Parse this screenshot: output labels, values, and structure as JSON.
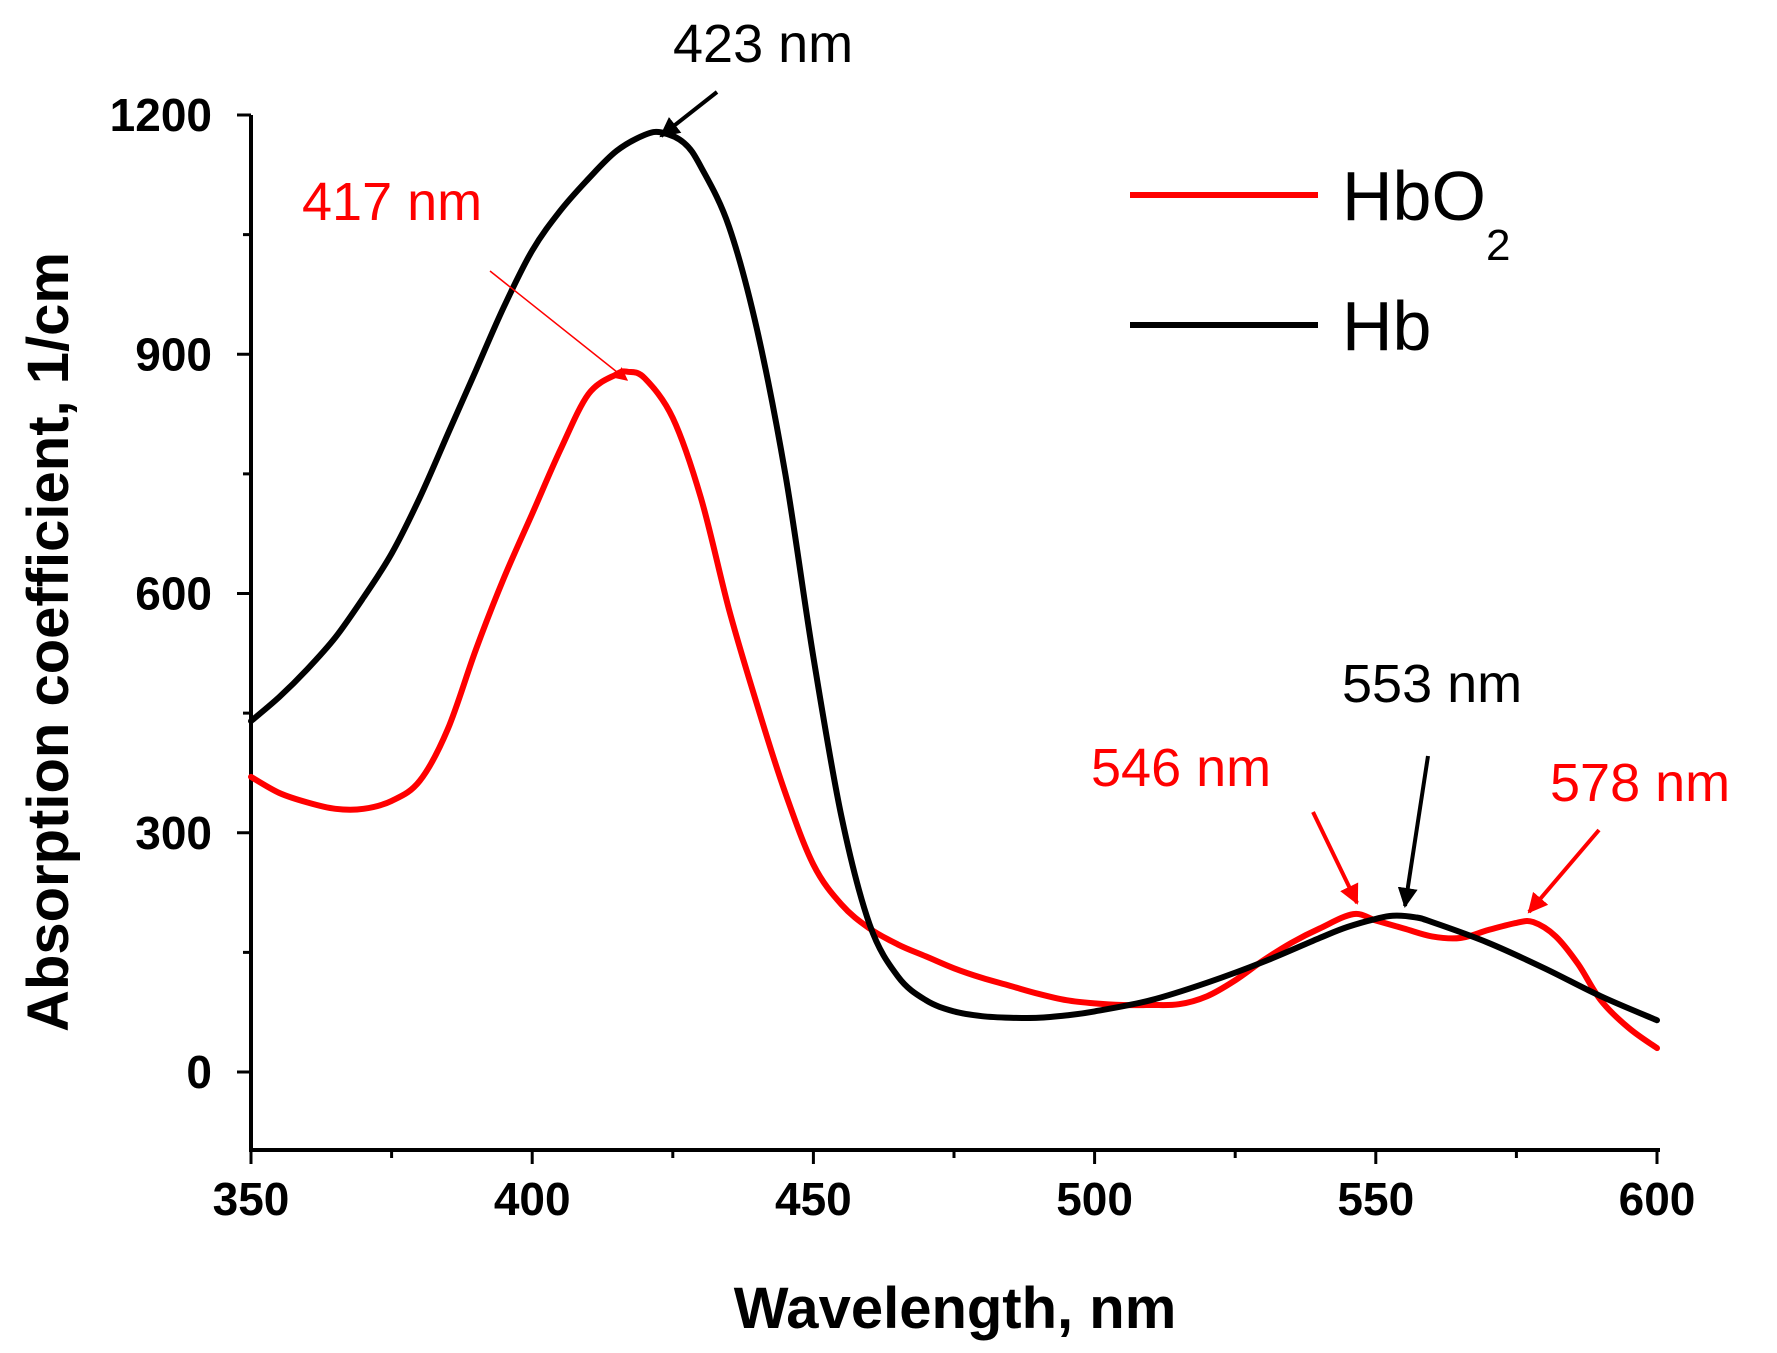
{
  "chart_data": {
    "type": "line",
    "title": "",
    "xlabel": "Wavelength, nm",
    "ylabel": "Absorption coefficient, 1/cm",
    "xlim": [
      350,
      600
    ],
    "ylim": [
      -100,
      1220
    ],
    "xticks": [
      350,
      400,
      450,
      500,
      550,
      600
    ],
    "xtick_labels": [
      "350",
      "400",
      "450",
      "500",
      "550",
      "600"
    ],
    "xminor": [
      375,
      425,
      475,
      525,
      575
    ],
    "yticks": [
      0,
      300,
      600,
      900,
      1200
    ],
    "ytick_labels": [
      "0",
      "300",
      "600",
      "900",
      "1200"
    ],
    "yminor": [
      150,
      450,
      750,
      1050
    ],
    "legend_position": "top-right",
    "series": [
      {
        "name": "HbO2",
        "name_main": "HbO",
        "name_sub": "2",
        "color": "#ff0000",
        "x": [
          350,
          355,
          360,
          365,
          370,
          375,
          380,
          385,
          390,
          395,
          400,
          405,
          410,
          415,
          417,
          420,
          425,
          430,
          435,
          440,
          445,
          450,
          455,
          460,
          465,
          470,
          475,
          480,
          485,
          490,
          495,
          500,
          505,
          510,
          515,
          520,
          525,
          530,
          535,
          540,
          546,
          550,
          555,
          560,
          565,
          570,
          575,
          578,
          582,
          586,
          590,
          595,
          600
        ],
        "y": [
          370,
          350,
          338,
          330,
          330,
          340,
          365,
          430,
          530,
          620,
          700,
          780,
          850,
          875,
          878,
          870,
          820,
          720,
          580,
          460,
          350,
          260,
          210,
          180,
          160,
          145,
          130,
          118,
          108,
          98,
          90,
          86,
          84,
          84,
          85,
          95,
          115,
          140,
          162,
          180,
          198,
          190,
          180,
          170,
          168,
          178,
          187,
          188,
          170,
          135,
          90,
          55,
          30
        ]
      },
      {
        "name": "Hb",
        "name_main": "Hb",
        "name_sub": "",
        "color": "#000000",
        "x": [
          350,
          355,
          360,
          365,
          370,
          375,
          380,
          385,
          390,
          395,
          400,
          405,
          410,
          415,
          420,
          423,
          427,
          430,
          435,
          440,
          445,
          450,
          455,
          460,
          465,
          470,
          475,
          480,
          485,
          490,
          495,
          500,
          510,
          520,
          530,
          540,
          545,
          550,
          553,
          557,
          560,
          570,
          580,
          590,
          600
        ],
        "y": [
          440,
          470,
          505,
          545,
          595,
          650,
          720,
          800,
          880,
          960,
          1030,
          1080,
          1120,
          1155,
          1175,
          1178,
          1165,
          1135,
          1060,
          930,
          750,
          520,
          320,
          185,
          120,
          90,
          76,
          70,
          68,
          68,
          71,
          76,
          90,
          112,
          138,
          168,
          182,
          192,
          196,
          194,
          188,
          162,
          130,
          95,
          65
        ]
      }
    ],
    "annotations": [
      {
        "text": "423 nm",
        "color": "#000000"
      },
      {
        "text": "417 nm",
        "color": "#ff0000"
      },
      {
        "text": "553 nm",
        "color": "#000000"
      },
      {
        "text": "546 nm",
        "color": "#ff0000"
      },
      {
        "text": "578 nm",
        "color": "#ff0000"
      }
    ]
  }
}
